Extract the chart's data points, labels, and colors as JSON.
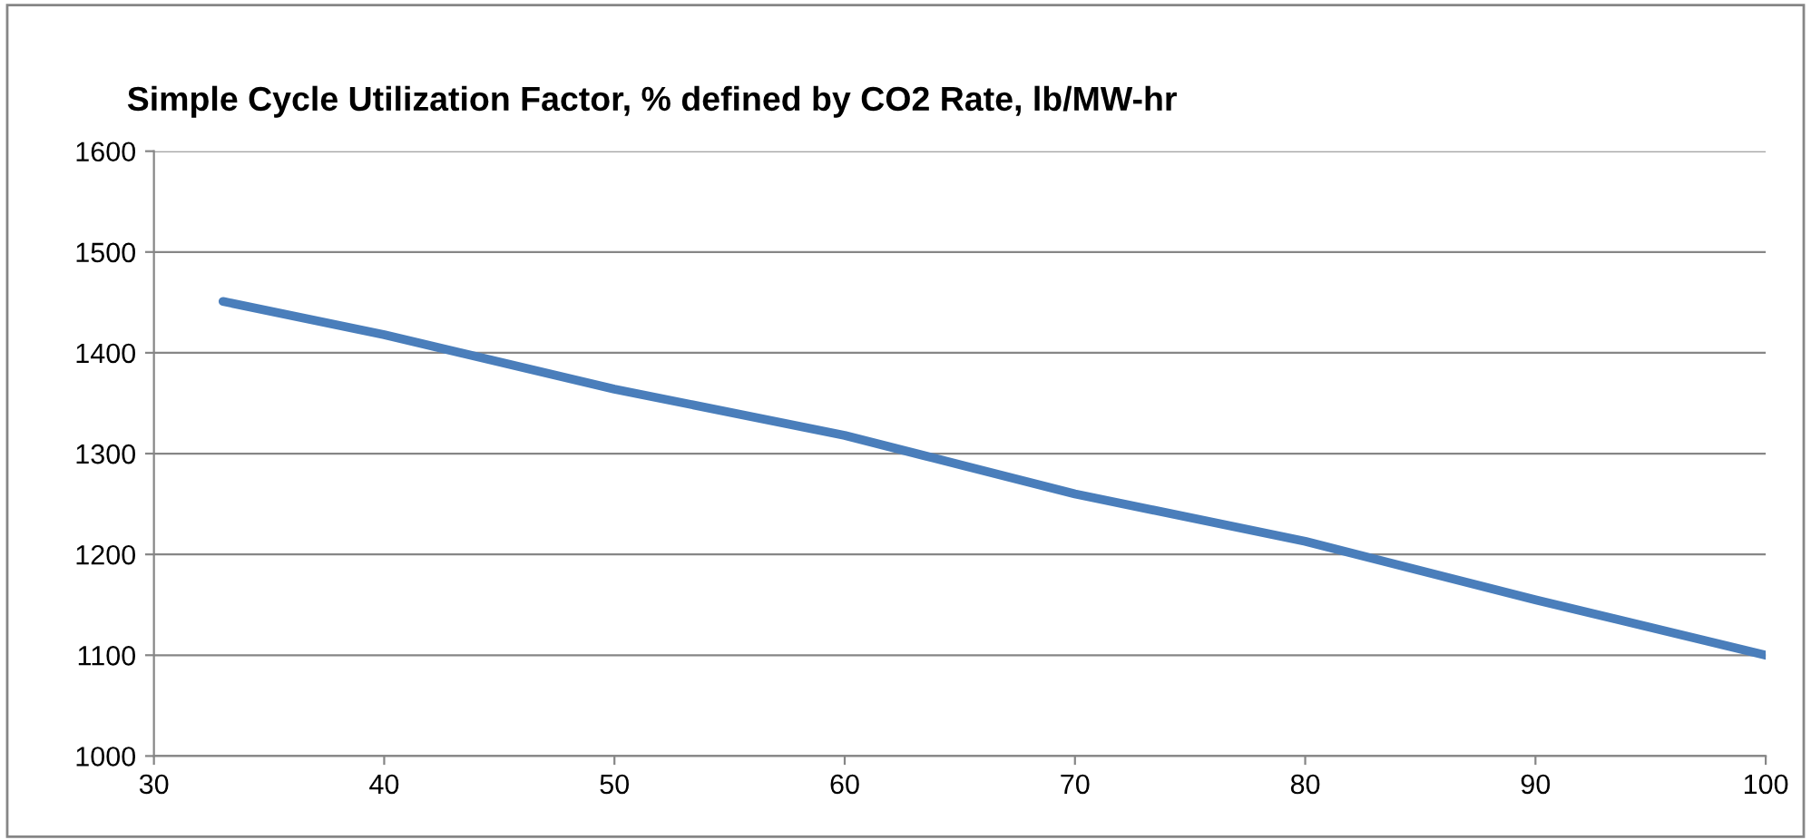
{
  "chart_data": {
    "type": "line",
    "title": "Simple Cycle Utilization Factor, % defined by CO2 Rate, lb/MW-hr",
    "series": [
      {
        "color": "#4a7ebb",
        "x": [
          33,
          40,
          50,
          60,
          70,
          80,
          90,
          100
        ],
        "values": [
          1451,
          1418,
          1364,
          1318,
          1260,
          1213,
          1155,
          1100
        ]
      }
    ],
    "xlim": [
      30,
      100
    ],
    "xticks": [
      30,
      40,
      50,
      60,
      70,
      80,
      90,
      100
    ],
    "ylim": [
      1000,
      1600
    ],
    "yticks": [
      1000,
      1100,
      1200,
      1300,
      1400,
      1500,
      1600
    ],
    "grid": "y",
    "marker": "none",
    "line_style": "solid"
  }
}
